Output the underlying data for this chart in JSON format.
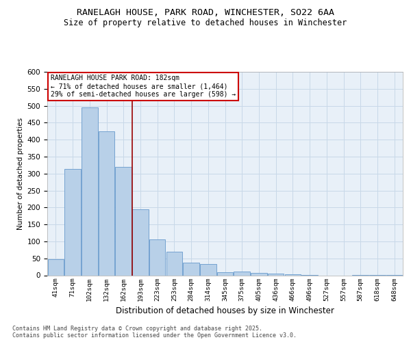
{
  "title_line1": "RANELAGH HOUSE, PARK ROAD, WINCHESTER, SO22 6AA",
  "title_line2": "Size of property relative to detached houses in Winchester",
  "xlabel": "Distribution of detached houses by size in Winchester",
  "ylabel": "Number of detached properties",
  "categories": [
    "41sqm",
    "71sqm",
    "102sqm",
    "132sqm",
    "162sqm",
    "193sqm",
    "223sqm",
    "253sqm",
    "284sqm",
    "314sqm",
    "345sqm",
    "375sqm",
    "405sqm",
    "436sqm",
    "466sqm",
    "496sqm",
    "527sqm",
    "557sqm",
    "587sqm",
    "618sqm",
    "648sqm"
  ],
  "values": [
    48,
    313,
    495,
    425,
    320,
    195,
    105,
    70,
    38,
    33,
    10,
    12,
    7,
    6,
    3,
    1,
    0,
    0,
    2,
    2,
    1
  ],
  "bar_color": "#b8d0e8",
  "bar_edge_color": "#6699cc",
  "vline_position": 4.5,
  "vline_label": "RANELAGH HOUSE PARK ROAD: 182sqm",
  "annotation_line2": "← 71% of detached houses are smaller (1,464)",
  "annotation_line3": "29% of semi-detached houses are larger (598) →",
  "annotation_box_color": "#ffffff",
  "annotation_box_edge": "#cc0000",
  "vline_color": "#990000",
  "grid_color": "#c8d8e8",
  "bg_color": "#e8f0f8",
  "footnote": "Contains HM Land Registry data © Crown copyright and database right 2025.\nContains public sector information licensed under the Open Government Licence v3.0.",
  "ylim": [
    0,
    600
  ],
  "yticks": [
    0,
    50,
    100,
    150,
    200,
    250,
    300,
    350,
    400,
    450,
    500,
    550,
    600
  ]
}
